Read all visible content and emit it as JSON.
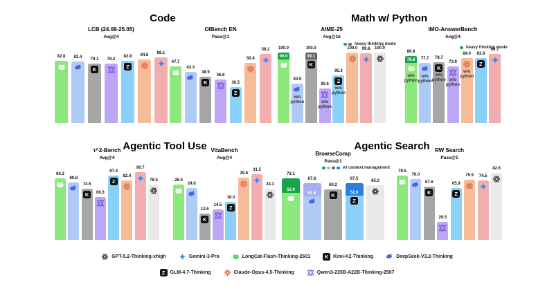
{
  "page": {
    "background": "#ffffff"
  },
  "sections": [
    {
      "id": "code",
      "title": "Code"
    },
    {
      "id": "math-w-python",
      "title": "Math w/ Python"
    },
    {
      "id": "agentic-tool-use",
      "title": "Agentic Tool Use"
    },
    {
      "id": "agentic-search",
      "title": "Agentic Search"
    }
  ],
  "models": {
    "gpt": {
      "name": "GPT-5.2-Thinking-xhigh",
      "color": "#e9e9e9",
      "icon": "openai-flower-icon",
      "icon_color": "#3f3f3f"
    },
    "gemini": {
      "name": "Gemini-3-Pro",
      "color": "#f2aeae",
      "icon": "gemini-sparkle-icon",
      "icon_color": "#4285f4"
    },
    "longcat": {
      "name": "LongCat-Flash-Thinking-2601",
      "color": "#8ce77d",
      "cap_color": "#17a34b",
      "icon": "longcat-cat-icon",
      "icon_color": "#ffffff",
      "legend_icon_color": "#3ecf63"
    },
    "kimi": {
      "name": "Kimi-K2-Thinking",
      "color": "#a6a6a6",
      "cap_color": "#646464",
      "icon": "kimi-k-badge-icon",
      "icon_color": "#111111",
      "badge_letter": "K"
    },
    "deepseek": {
      "name": "DeepSeek-V3.2-Thinking",
      "color": "#aecbf5",
      "cap_color": "#a9aef3",
      "icon": "deepseek-whale-icon",
      "icon_color": "#4a63e7"
    },
    "glm": {
      "name": "GLM-4.7-Thinking",
      "color": "#8bd0f8",
      "cap_color": "#2b7fe3",
      "icon": "glm-z-badge-icon",
      "icon_color": "#111111",
      "badge_letter": "Z"
    },
    "claude": {
      "name": "Claude-Opus-4.5-Thinking",
      "color": "#f6bb97",
      "icon": "claude-starburst-icon",
      "icon_color": "#e36b4a"
    },
    "qwen": {
      "name": "Qwen3-235B-A22B-Thinking-2507",
      "color": "#bca7f4",
      "icon": "qwen-knot-icon",
      "icon_color": "#7550e6"
    }
  },
  "legend": {
    "row1": [
      "gpt",
      "gemini",
      "longcat",
      "kimi",
      "deepseek"
    ],
    "row2": [
      "glm",
      "claude",
      "qwen"
    ]
  },
  "chart_data": [
    {
      "id": "lcb",
      "type": "bar",
      "section": "Code",
      "title": "LCB (24.08-25.05)",
      "subtitle": "Avg@4",
      "ylim": [
        0,
        98
      ],
      "bars": [
        {
          "model": "longcat",
          "value": 82.8
        },
        {
          "model": "deepseek",
          "value": 82.4
        },
        {
          "model": "kimi",
          "value": 79.1
        },
        {
          "model": "qwen",
          "value": 79.2
        },
        {
          "model": "glm",
          "value": 82.8
        },
        {
          "model": "claude",
          "value": 84.8
        },
        {
          "model": "gemini",
          "value": 88.1
        }
      ]
    },
    {
      "id": "oibench-en",
      "type": "bar",
      "section": "Code",
      "title": "OIBench EN",
      "subtitle": "Pass@1",
      "ylim": [
        0,
        62
      ],
      "bars": [
        {
          "model": "longcat",
          "value": 47.7
        },
        {
          "model": "deepseek",
          "value": 43.3
        },
        {
          "model": "kimi",
          "value": 38.9
        },
        {
          "model": "qwen",
          "value": 36.8
        },
        {
          "model": "glm",
          "value": 30.5
        },
        {
          "model": "claude",
          "value": 50.8
        },
        {
          "model": "gemini",
          "value": 58.2
        }
      ]
    },
    {
      "id": "aime-25",
      "type": "bar",
      "section": "Math w/ Python",
      "title": "AIME-25",
      "subtitle": "Avg@16",
      "ylim": [
        85.5,
        100.5
      ],
      "annotation": {
        "dot_models": [
          "longcat",
          "kimi"
        ],
        "label": "heavy thinking mode"
      },
      "bars": [
        {
          "model": "longcat",
          "value": 99.6,
          "cap_value": 100.0
        },
        {
          "model": "deepseek",
          "value": 93.5,
          "note": "w/o python"
        },
        {
          "model": "kimi",
          "value": 99.1,
          "cap_value": 100.0
        },
        {
          "model": "qwen",
          "value": 92.6,
          "note": "w/o python"
        },
        {
          "model": "glm",
          "value": 95.3,
          "note": "w/o python"
        },
        {
          "model": "claude",
          "value": 100.0
        },
        {
          "model": "gemini",
          "value": 99.8
        },
        {
          "model": "gpt",
          "value": 100.0
        }
      ]
    },
    {
      "id": "imo-answerbench",
      "type": "bar",
      "section": "Math w/ Python",
      "title": "IMO-AnswerBench",
      "subtitle": "Avg@4",
      "ylim": [
        0,
        95
      ],
      "annotation": {
        "dot_models": [
          "longcat"
        ],
        "label": "heavy thinking mode"
      },
      "bars": [
        {
          "model": "longcat",
          "value": 78.6,
          "cap_value": 86.8,
          "note": "w/o python"
        },
        {
          "model": "deepseek",
          "value": 77.7,
          "note": "w/o python"
        },
        {
          "model": "kimi",
          "value": 78.7,
          "note": "w/o python"
        },
        {
          "model": "qwen",
          "value": 73.9,
          "note": "w/o python"
        },
        {
          "model": "claude",
          "value": 84.0,
          "note": "w/o python"
        },
        {
          "model": "glm",
          "value": 83.8
        },
        {
          "model": "gemini",
          "value": 89.7
        }
      ]
    },
    {
      "id": "tau2-bench",
      "type": "bar",
      "section": "Agentic Tool Use",
      "title": "τ^2-Bench",
      "subtitle": "Avg@4",
      "ylim": [
        25,
        92
      ],
      "bars": [
        {
          "model": "longcat",
          "value": 84.3
        },
        {
          "model": "deepseek",
          "value": 80.8
        },
        {
          "model": "kimi",
          "value": 74.5
        },
        {
          "model": "qwen",
          "value": 66.3
        },
        {
          "model": "glm",
          "value": 87.4
        },
        {
          "model": "claude",
          "value": 82.4
        },
        {
          "model": "gemini",
          "value": 90.7
        },
        {
          "model": "gpt",
          "value": 78.5
        }
      ]
    },
    {
      "id": "vitabench",
      "type": "bar",
      "section": "Agentic Tool Use",
      "title": "VitaBench",
      "subtitle": "Avg@4",
      "ylim": [
        0,
        33
      ],
      "bars": [
        {
          "model": "longcat",
          "value": 26.5
        },
        {
          "model": "deepseek",
          "value": 24.6
        },
        {
          "model": "kimi",
          "value": 12.6
        },
        {
          "model": "qwen",
          "value": 14.5
        },
        {
          "model": "glm",
          "value": 18.3
        },
        {
          "model": "claude",
          "value": 29.6
        },
        {
          "model": "gemini",
          "value": 31.5
        },
        {
          "model": "gpt",
          "value": 24.3
        }
      ]
    },
    {
      "id": "browsecomp",
      "type": "bar",
      "section": "Agentic Search",
      "title": "BrowseComp",
      "subtitle": "Pass@1",
      "ylim": [
        0,
        78
      ],
      "annotation": {
        "dot_models": [
          "longcat",
          "deepseek",
          "kimi",
          "glm"
        ],
        "label": "w/ context management"
      },
      "bars": [
        {
          "model": "longcat",
          "value": 56.0,
          "cap_value": 73.1
        },
        {
          "model": "deepseek",
          "value": 51.6,
          "cap_value": 67.6
        },
        {
          "model": "kimi",
          "value": 60.2
        },
        {
          "model": "glm",
          "value": 52.6,
          "cap_value": 67.5
        },
        {
          "model": "gpt",
          "value": 65.0
        }
      ]
    },
    {
      "id": "rw-search",
      "type": "bar",
      "section": "Agentic Search",
      "title": "RW Search",
      "subtitle": "Pass@1",
      "ylim": [
        10,
        85
      ],
      "bars": [
        {
          "model": "longcat",
          "value": 79.5
        },
        {
          "model": "deepseek",
          "value": 76.0
        },
        {
          "model": "kimi",
          "value": 67.6
        },
        {
          "model": "qwen",
          "value": 29.5
        },
        {
          "model": "glm",
          "value": 65.9
        },
        {
          "model": "claude",
          "value": 75.5
        },
        {
          "model": "gemini",
          "value": 74.5
        },
        {
          "model": "gpt",
          "value": 82.6
        }
      ]
    }
  ]
}
